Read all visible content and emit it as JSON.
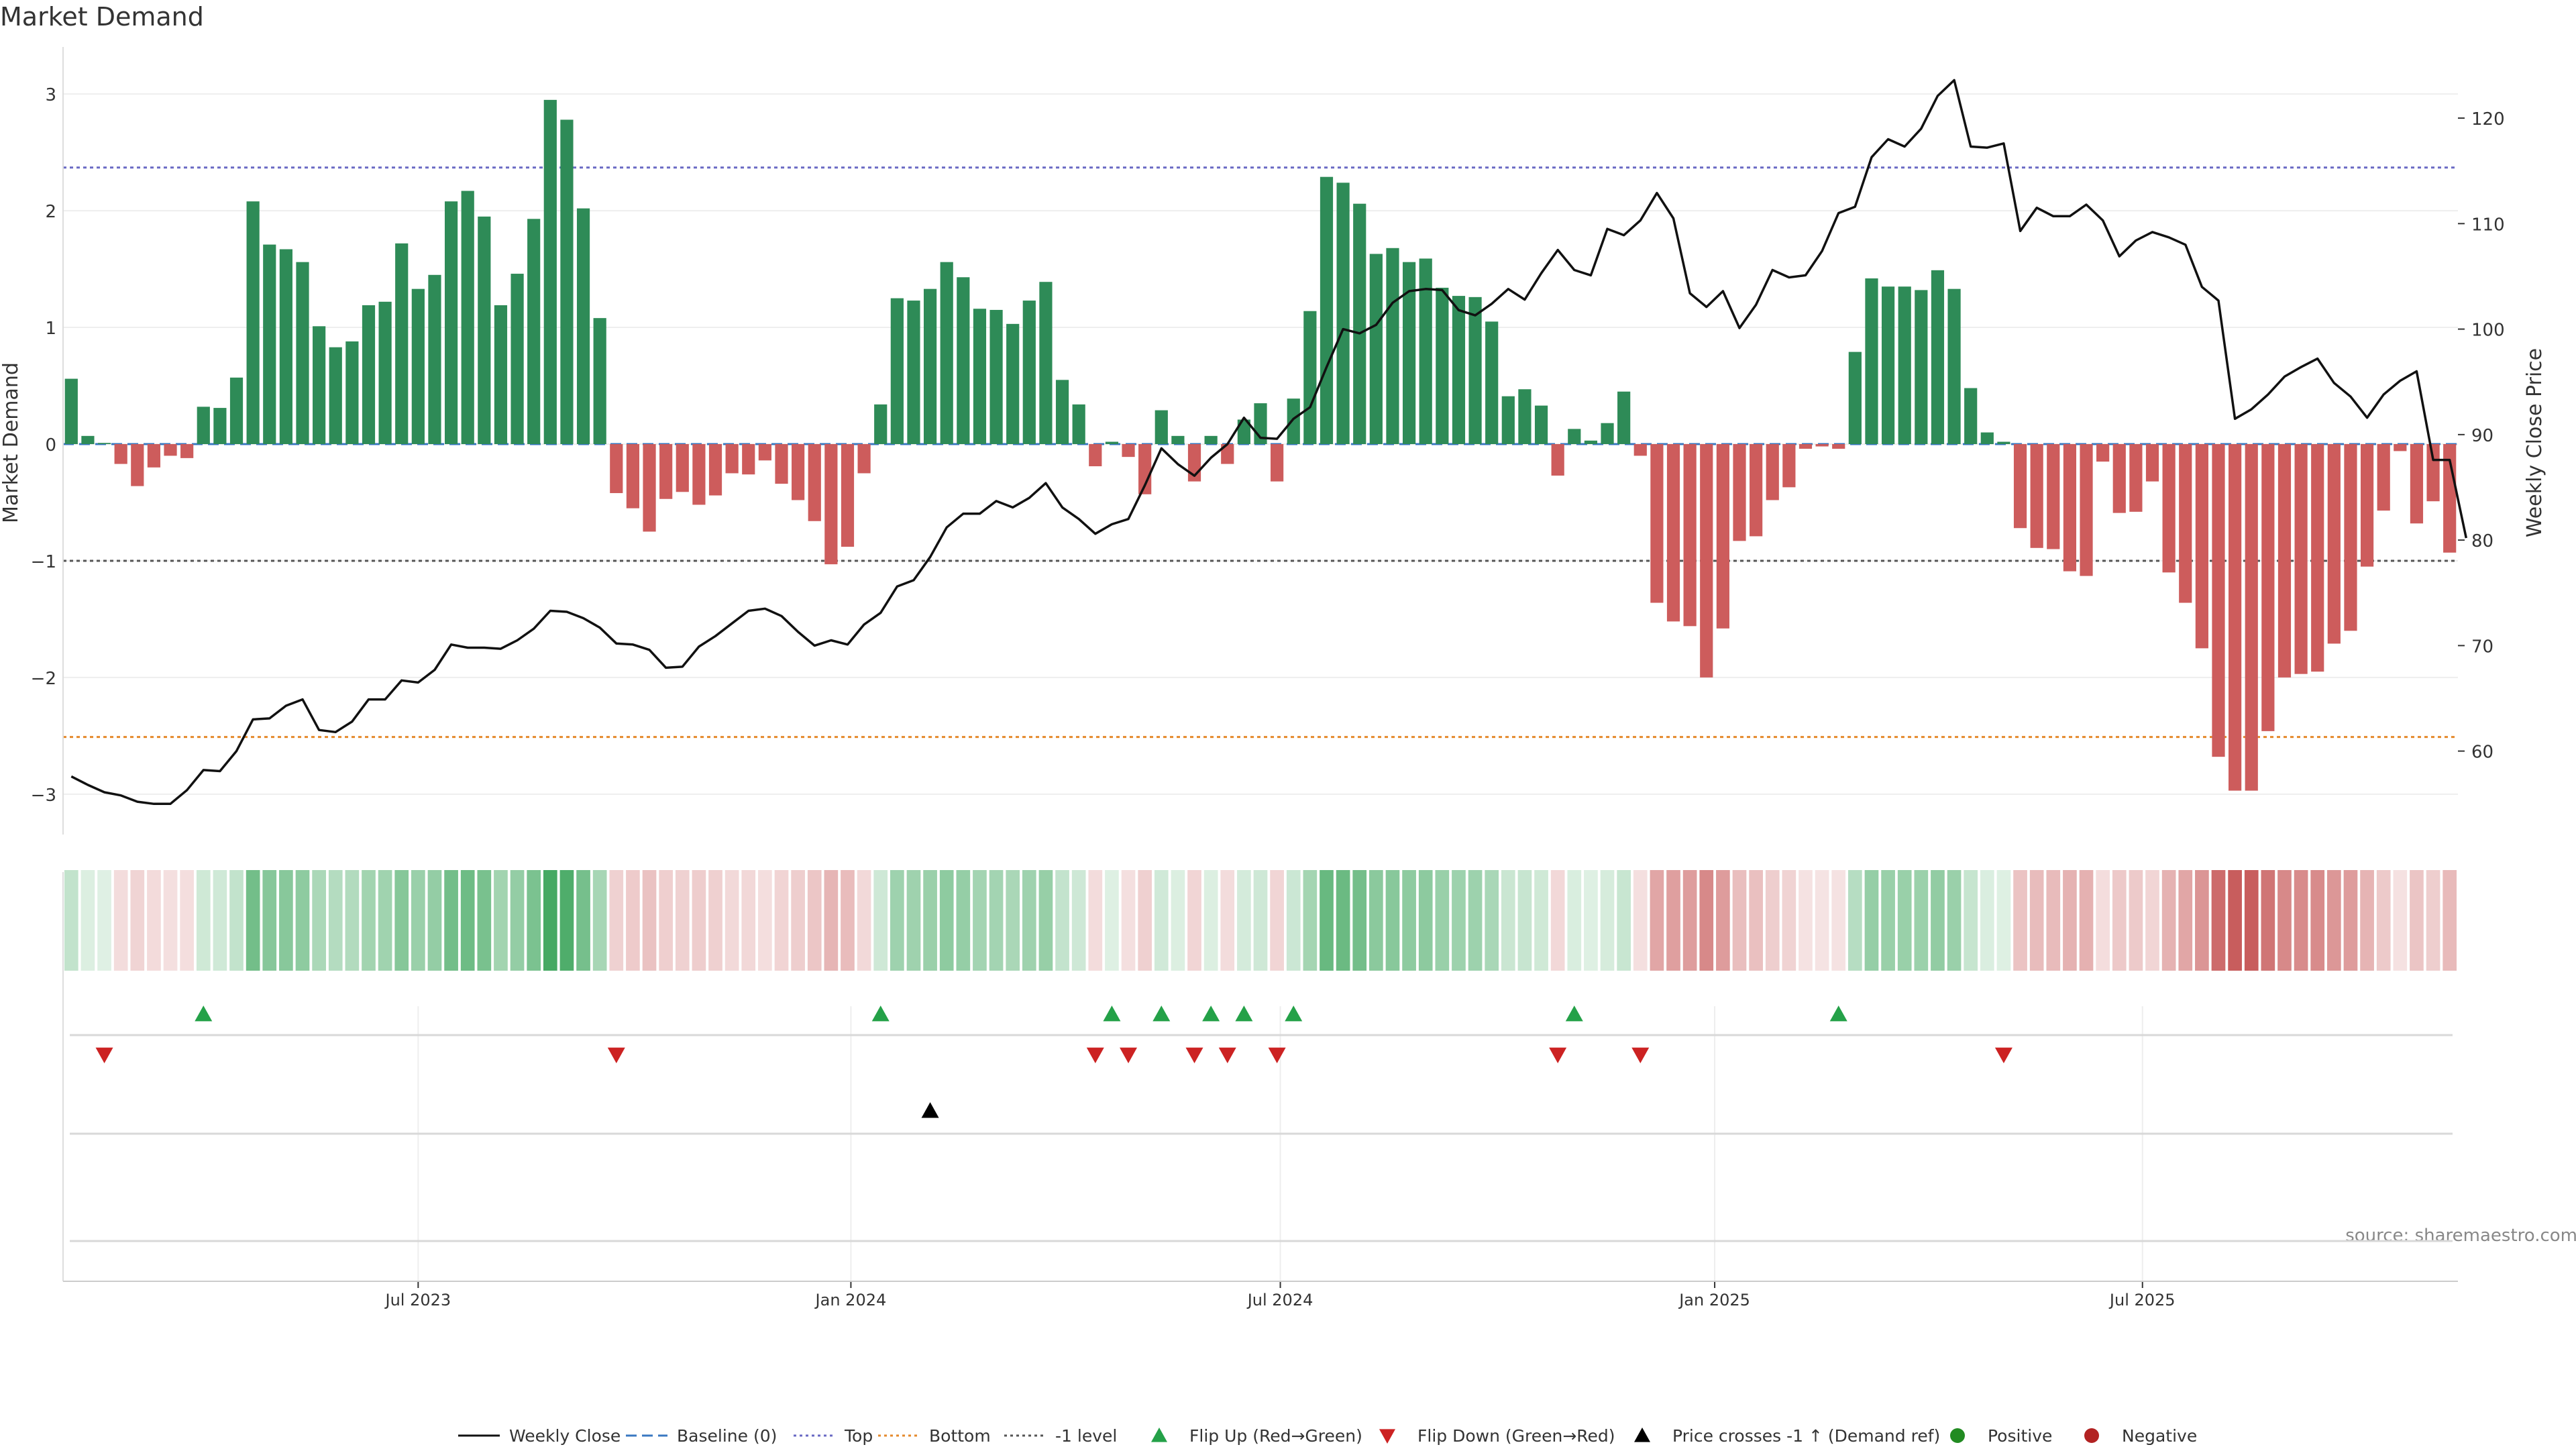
{
  "chart_data": {
    "type": "bar",
    "title": "Market Demand",
    "ylabel_left": "Market Demand",
    "ylabel_right": "Weekly Close Price",
    "source": "source: sharemaestro.com",
    "y_ticks_left": [
      3,
      2,
      1,
      0,
      -1,
      -2,
      -3
    ],
    "y_tick_labels_left": [
      "3",
      "2",
      "1",
      "0",
      "−1",
      "−2",
      "−3"
    ],
    "y_ticks_right": [
      120,
      110,
      100,
      90,
      80,
      70,
      60
    ],
    "ylim_left": [
      -3.3,
      3.3
    ],
    "ylim_right": [
      52.6,
      125.6
    ],
    "x_ticks": [
      {
        "week": 21.5,
        "label": "Jul 2023"
      },
      {
        "week": 47.7,
        "label": "Jan 2024"
      },
      {
        "week": 73.7,
        "label": "Jul 2024"
      },
      {
        "week": 100.0,
        "label": "Jan 2025"
      },
      {
        "week": 125.9,
        "label": "Jul 2025"
      }
    ],
    "reference_lines": [
      {
        "name": "Top",
        "value": 2.37,
        "color": "#6a6ac4"
      },
      {
        "name": "Bottom",
        "value": -2.51,
        "color": "#e58a2c"
      },
      {
        "name": "-1 level",
        "value": -1.0,
        "color": "#555555"
      }
    ],
    "demand": [
      0.56,
      0.07,
      0.01,
      -0.17,
      -0.36,
      -0.2,
      -0.1,
      -0.12,
      0.32,
      0.31,
      0.57,
      2.08,
      1.71,
      1.67,
      1.56,
      1.01,
      0.83,
      0.88,
      1.19,
      1.22,
      1.72,
      1.33,
      1.45,
      2.08,
      2.17,
      1.95,
      1.19,
      1.46,
      1.93,
      2.95,
      2.78,
      2.02,
      1.08,
      -0.42,
      -0.55,
      -0.75,
      -0.47,
      -0.41,
      -0.52,
      -0.44,
      -0.25,
      -0.26,
      -0.14,
      -0.34,
      -0.48,
      -0.66,
      -1.03,
      -0.88,
      -0.25,
      0.34,
      1.25,
      1.23,
      1.33,
      1.56,
      1.43,
      1.16,
      1.15,
      1.03,
      1.23,
      1.39,
      0.55,
      0.34,
      -0.19,
      0.02,
      -0.11,
      -0.43,
      0.29,
      0.07,
      -0.32,
      0.07,
      -0.17,
      0.21,
      0.35,
      -0.32,
      0.39,
      1.14,
      2.29,
      2.24,
      2.06,
      1.63,
      1.68,
      1.56,
      1.59,
      1.34,
      1.27,
      1.26,
      1.05,
      0.41,
      0.47,
      0.33,
      -0.27,
      0.13,
      0.03,
      0.18,
      0.45,
      -0.1,
      -1.36,
      -1.52,
      -1.56,
      -2.0,
      -1.58,
      -0.83,
      -0.79,
      -0.48,
      -0.37,
      -0.04,
      -0.02,
      -0.04,
      0.79,
      1.42,
      1.35,
      1.35,
      1.32,
      1.49,
      1.33,
      0.48,
      0.1,
      0.02,
      -0.72,
      -0.89,
      -0.9,
      -1.09,
      -1.13,
      -0.15,
      -0.59,
      -0.58,
      -0.32,
      -1.1,
      -1.36,
      -1.75,
      -2.68,
      -2.97,
      -2.97,
      -2.46,
      -2.0,
      -1.97,
      -1.95,
      -1.71,
      -1.6,
      -1.05,
      -0.57,
      -0.06,
      -0.68,
      -0.49,
      -0.93
    ],
    "weekly_close": [
      57.6,
      56.8,
      56.1,
      55.8,
      55.2,
      55.0,
      55.0,
      56.3,
      58.2,
      58.1,
      60.0,
      63.0,
      63.1,
      64.3,
      64.9,
      62.0,
      61.8,
      62.8,
      64.9,
      64.9,
      66.7,
      66.5,
      67.7,
      70.1,
      69.8,
      69.8,
      69.7,
      70.5,
      71.6,
      73.3,
      73.2,
      72.6,
      71.7,
      70.2,
      70.1,
      69.6,
      67.9,
      68.0,
      69.9,
      70.9,
      72.1,
      73.3,
      73.5,
      72.8,
      71.3,
      70.0,
      70.5,
      70.1,
      72.0,
      73.1,
      75.6,
      76.2,
      78.4,
      81.2,
      82.5,
      82.5,
      83.7,
      83.1,
      84.0,
      85.4,
      83.1,
      82.0,
      80.6,
      81.5,
      82.0,
      85.2,
      88.7,
      87.2,
      86.1,
      87.8,
      89.1,
      91.6,
      89.7,
      89.6,
      91.5,
      92.6,
      96.4,
      100.0,
      99.6,
      100.4,
      102.5,
      103.6,
      103.8,
      103.7,
      101.8,
      101.3,
      102.4,
      103.8,
      102.8,
      105.3,
      107.5,
      105.6,
      105.1,
      109.5,
      108.9,
      110.3,
      112.9,
      110.5,
      103.4,
      102.1,
      103.6,
      100.1,
      102.3,
      105.6,
      104.9,
      105.1,
      107.4,
      111.0,
      111.6,
      116.3,
      118.0,
      117.3,
      119.0,
      122.1,
      123.6,
      117.3,
      117.2,
      117.6,
      109.3,
      111.5,
      110.7,
      110.7,
      111.8,
      110.3,
      106.9,
      108.4,
      109.2,
      108.7,
      108.0,
      104.0,
      102.7,
      91.5,
      92.4,
      93.8,
      95.5,
      96.4,
      97.2,
      94.9,
      93.6,
      91.6,
      93.8,
      95.1,
      96.0,
      87.6,
      87.6,
      80.2
    ],
    "flip_up_weeks": [
      8,
      49,
      63,
      66,
      69,
      71,
      74,
      91,
      107
    ],
    "flip_down_weeks": [
      2,
      33,
      62,
      64,
      68,
      70,
      73,
      90,
      95,
      117
    ],
    "price_cross_weeks": [
      52
    ],
    "colors": {
      "positive_bar": "#2e8b57",
      "negative_bar": "#cd5c5c",
      "price_line": "#111111",
      "flip_up": "#24a148",
      "flip_down": "#cc2222",
      "price_cross": "#000000",
      "positive_dot": "#228b22",
      "negative_dot": "#b22222",
      "baseline": "#3a78c2"
    },
    "legend": [
      {
        "label": "Weekly Close",
        "kind": "line",
        "color": "#111111",
        "dash": ""
      },
      {
        "label": "Baseline (0)",
        "kind": "line",
        "color": "#3a78c2",
        "dash": "16,8"
      },
      {
        "label": "Top",
        "kind": "line",
        "color": "#6a6ac4",
        "dash": "4,5"
      },
      {
        "label": "Bottom",
        "kind": "line",
        "color": "#e58a2c",
        "dash": "4,5"
      },
      {
        "label": "-1 level",
        "kind": "line",
        "color": "#555555",
        "dash": "4,5"
      },
      {
        "label": "Flip Up (Red→Green)",
        "kind": "tri-up",
        "color": "#24a148"
      },
      {
        "label": "Flip Down (Green→Red)",
        "kind": "tri-down",
        "color": "#cc2222"
      },
      {
        "label": "Price crosses -1 ↑ (Demand ref)",
        "kind": "tri-up",
        "color": "#000000"
      },
      {
        "label": "Positive",
        "kind": "dot",
        "color": "#228b22"
      },
      {
        "label": "Negative",
        "kind": "dot",
        "color": "#b22222"
      }
    ],
    "legend_position": "bottom-center",
    "grid": true
  }
}
